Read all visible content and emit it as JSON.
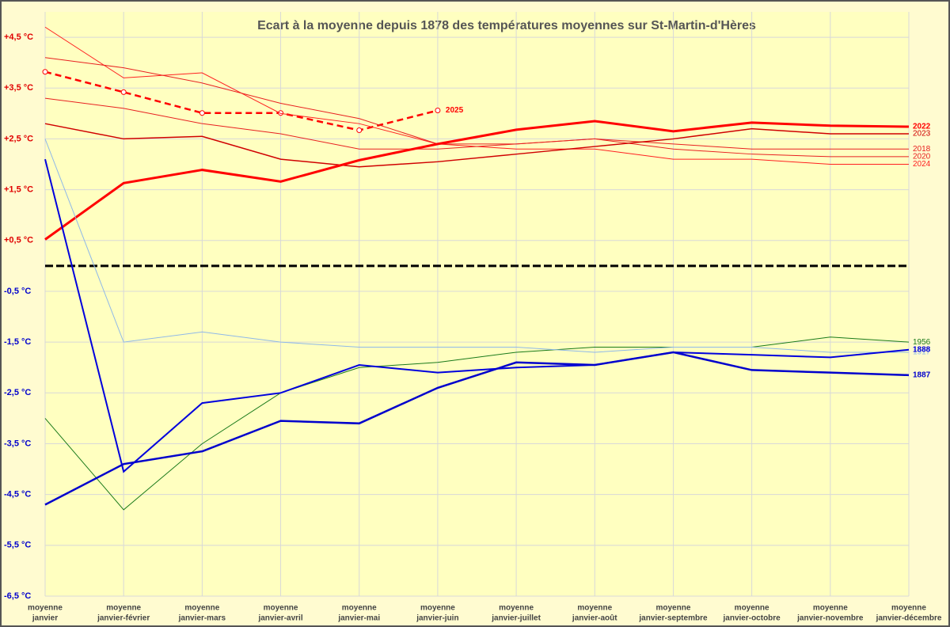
{
  "chart_data": {
    "type": "line",
    "title": "Ecart à la moyenne depuis 1878 des températures moyennes sur St-Martin-d'Hères",
    "categories": [
      [
        "moyenne",
        "janvier"
      ],
      [
        "moyenne",
        "janvier-février"
      ],
      [
        "moyenne",
        "janvier-mars"
      ],
      [
        "moyenne",
        "janvier-avril"
      ],
      [
        "moyenne",
        "janvier-mai"
      ],
      [
        "moyenne",
        "janvier-juin"
      ],
      [
        "moyenne",
        "janvier-juillet"
      ],
      [
        "moyenne",
        "janvier-août"
      ],
      [
        "moyenne",
        "janvier-septembre"
      ],
      [
        "moyenne",
        "janvier-octobre"
      ],
      [
        "moyenne",
        "janvier-novembre"
      ],
      [
        "moyenne",
        "janvier-décembre"
      ]
    ],
    "ylim": [
      -6.5,
      5
    ],
    "yticks": [
      {
        "value": 4.5,
        "label": "+4,5 °C"
      },
      {
        "value": 3.5,
        "label": "+3,5 °C"
      },
      {
        "value": 2.5,
        "label": "+2,5 °C"
      },
      {
        "value": 1.5,
        "label": "+1,5 °C"
      },
      {
        "value": 0.5,
        "label": "+0,5 °C"
      },
      {
        "value": -0.5,
        "label": "-0,5 °C"
      },
      {
        "value": -1.5,
        "label": "-1,5 °C"
      },
      {
        "value": -2.5,
        "label": "-2,5 °C"
      },
      {
        "value": -3.5,
        "label": "-3,5 °C"
      },
      {
        "value": -4.5,
        "label": "-4,5 °C"
      },
      {
        "value": -5.5,
        "label": "-5,5 °C"
      },
      {
        "value": -6.5,
        "label": "-6,5 °C"
      }
    ],
    "grid": true,
    "baseline": 0,
    "series": [
      {
        "name": "2025",
        "color": "#ff0000",
        "width": 2.5,
        "dashed": true,
        "markers": true,
        "values": [
          3.82,
          3.42,
          3.01,
          3.01,
          2.67,
          3.06,
          null,
          null,
          null,
          null,
          null,
          null
        ]
      },
      {
        "name": "2024",
        "color": "#ff2020",
        "width": 1,
        "values": [
          4.7,
          3.7,
          3.8,
          3.0,
          2.8,
          2.4,
          2.3,
          2.3,
          2.1,
          2.1,
          2.0,
          2.0
        ]
      },
      {
        "name": "2020",
        "color": "#e82020",
        "width": 1,
        "values": [
          4.1,
          3.9,
          3.6,
          3.2,
          2.9,
          2.4,
          2.4,
          2.5,
          2.3,
          2.2,
          2.15,
          2.15
        ]
      },
      {
        "name": "2018",
        "color": "#e82020",
        "width": 1,
        "values": [
          3.3,
          3.1,
          2.8,
          2.6,
          2.3,
          2.3,
          2.4,
          2.5,
          2.4,
          2.3,
          2.3,
          2.3
        ]
      },
      {
        "name": "2023",
        "color": "#d00000",
        "width": 1.5,
        "values": [
          2.8,
          2.5,
          2.55,
          2.1,
          1.95,
          2.05,
          2.2,
          2.35,
          2.5,
          2.7,
          2.6,
          2.6
        ]
      },
      {
        "name": "2022",
        "color": "#ff0000",
        "width": 3,
        "values": [
          0.52,
          1.63,
          1.89,
          1.66,
          2.08,
          2.4,
          2.68,
          2.85,
          2.65,
          2.82,
          2.76,
          2.74
        ]
      },
      {
        "name": "1956",
        "color": "#1a7a1a",
        "width": 1,
        "values": [
          -3.0,
          -4.8,
          -3.5,
          -2.5,
          -2.0,
          -1.9,
          -1.7,
          -1.6,
          -1.6,
          -1.6,
          -1.4,
          -1.5
        ]
      },
      {
        "name": "1917",
        "color": "#8fb8e8",
        "width": 1,
        "values": [
          2.5,
          -1.5,
          -1.3,
          -1.5,
          -1.6,
          -1.6,
          -1.6,
          -1.7,
          -1.6,
          -1.6,
          -1.7,
          -1.7
        ]
      },
      {
        "name": "1888",
        "color": "#0000dd",
        "width": 2,
        "values": [
          2.1,
          -4.05,
          -2.7,
          -2.5,
          -1.95,
          -2.1,
          -2.0,
          -1.95,
          -1.7,
          -1.75,
          -1.8,
          -1.65
        ]
      },
      {
        "name": "1887",
        "color": "#0000cc",
        "width": 2.5,
        "values": [
          -4.7,
          -3.9,
          -3.65,
          -3.05,
          -3.1,
          -2.4,
          -1.9,
          -1.95,
          -1.7,
          -2.05,
          -2.1,
          -2.15
        ]
      }
    ]
  }
}
